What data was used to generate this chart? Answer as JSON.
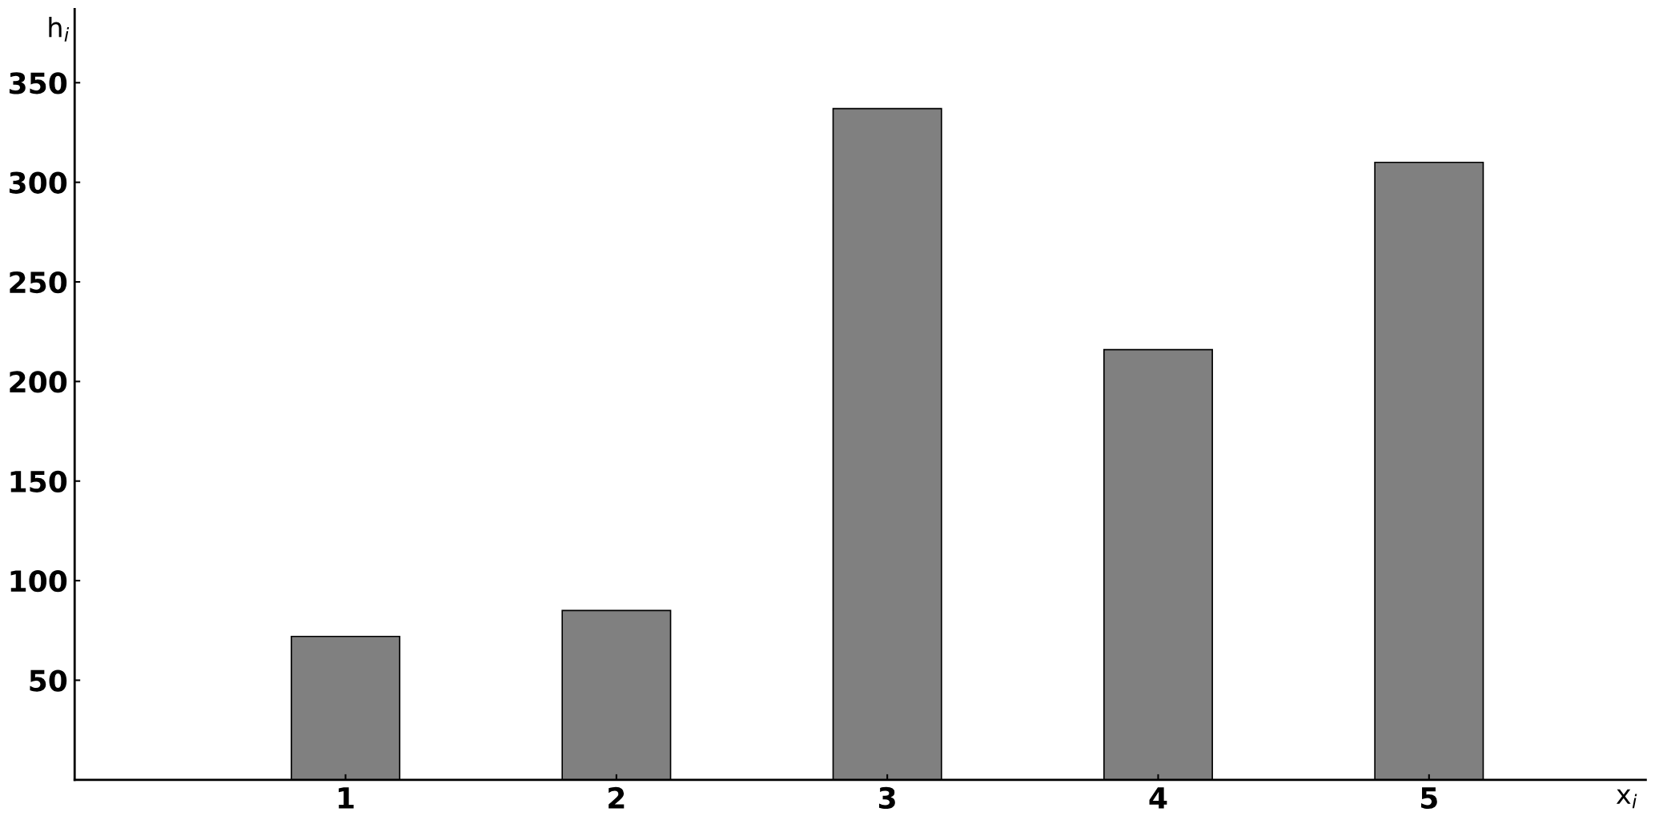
{
  "chart_data": {
    "type": "bar",
    "xlabel": "x$_{i}$",
    "ylabel": "h$_{i}$",
    "x": [
      1,
      2,
      3,
      4,
      5
    ],
    "values": [
      72,
      85,
      337,
      216,
      310
    ],
    "color": "#808080",
    "xlim": [
      0,
      5.8
    ],
    "xticks": [
      1,
      2,
      3,
      4,
      5
    ],
    "ylim": [
      0,
      387
    ],
    "yticks": [
      50,
      100,
      150,
      200,
      250,
      300,
      350
    ],
    "grid": false,
    "legend": false
  }
}
